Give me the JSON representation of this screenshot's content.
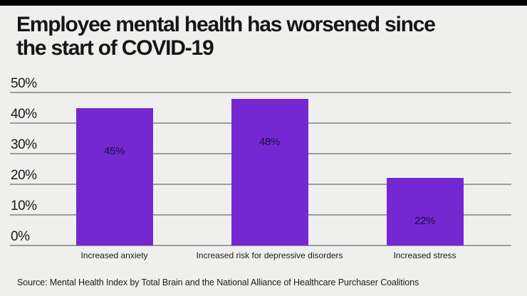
{
  "page": {
    "background_color": "#eff0ee",
    "top_bar_color": "#000000"
  },
  "title": "Employee mental health has worsened since the start of COVID-19",
  "title_lines": [
    "Employee mental health has worsened since",
    "the start of COVID-19"
  ],
  "source": "Source: Mental Health Index by Total Brain and the National Alliance of Healthcare Purchaser Coalitions",
  "chart_data": {
    "type": "bar",
    "title": "Employee mental health has worsened since the start of COVID-19",
    "categories": [
      "Increased anxiety",
      "Increased risk for depressive disorders",
      "Increased stress"
    ],
    "values": [
      45,
      48,
      22
    ],
    "value_labels": [
      "45%",
      "48%",
      "22%"
    ],
    "xlabel": "",
    "ylabel": "",
    "ylim": [
      0,
      50
    ],
    "yticks": [
      0,
      10,
      20,
      30,
      40,
      50
    ],
    "ytick_labels": [
      "0%",
      "10%",
      "20%",
      "30%",
      "40%",
      "50%"
    ],
    "grid": true,
    "legend": false,
    "bar_color": "#7528d2",
    "gridline_color": "#9c9c9c",
    "value_label_color": "#1b0e3e"
  }
}
